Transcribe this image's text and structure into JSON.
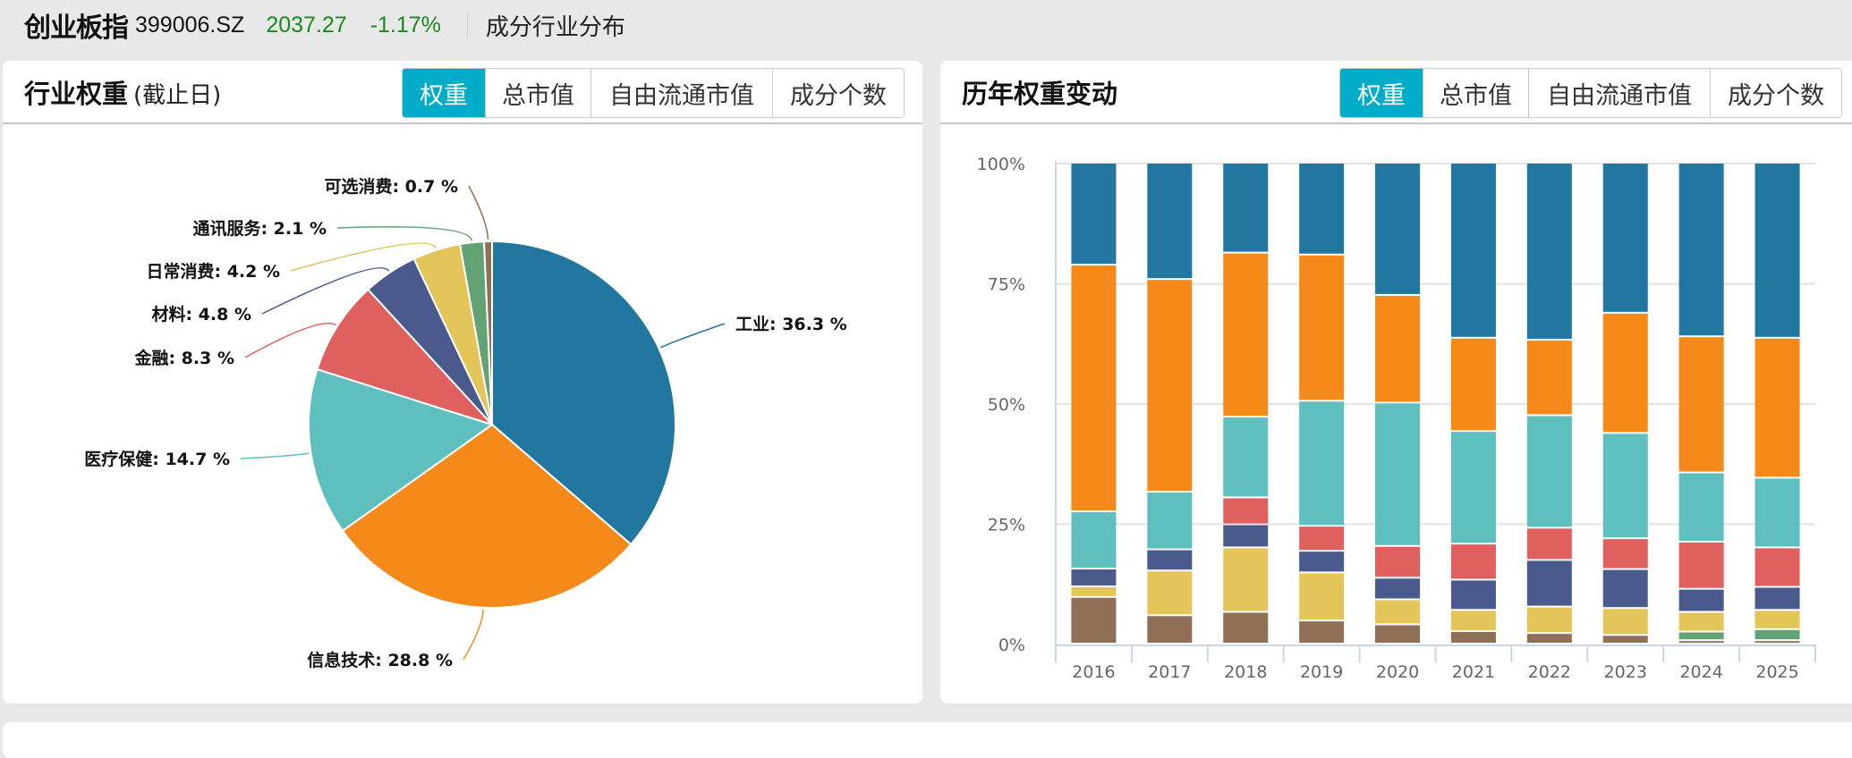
{
  "header": {
    "index_name": "创业板指",
    "index_code": "399006.SZ",
    "price": "2037.27",
    "change_pct": "-1.17%",
    "page_subtitle": "成分行业分布"
  },
  "left_panel": {
    "title": "行业权重",
    "title_sub": "(截止日)",
    "tabs": [
      {
        "label": "权重",
        "active": true
      },
      {
        "label": "总市值",
        "active": false
      },
      {
        "label": "自由流通市值",
        "active": false
      },
      {
        "label": "成分个数",
        "active": false
      }
    ]
  },
  "right_panel": {
    "title": "历年权重变动",
    "tabs": [
      {
        "label": "权重",
        "active": true
      },
      {
        "label": "总市值",
        "active": false
      },
      {
        "label": "自由流通市值",
        "active": false
      },
      {
        "label": "成分个数",
        "active": false
      }
    ]
  },
  "colors": {
    "工业": "#2277a1",
    "信息技术": "#f58a1a",
    "医疗保健": "#5fbebe",
    "金融": "#e05f5f",
    "材料": "#4b5a8c",
    "日常消费": "#e3c55a",
    "通讯服务": "#63a274",
    "可选消费": "#8f6f55",
    "accent_tab": "#00acc8",
    "price_green": "#1a8a1a"
  },
  "chart_data": [
    {
      "type": "pie",
      "title": "行业权重(截止日)",
      "categories": [
        "工业",
        "信息技术",
        "医疗保健",
        "金融",
        "材料",
        "日常消费",
        "通讯服务",
        "可选消费"
      ],
      "values": [
        36.3,
        28.8,
        14.7,
        8.3,
        4.8,
        4.2,
        2.1,
        0.7
      ],
      "labels": [
        "工业: 36.3 %",
        "信息技术: 28.8 %",
        "医疗保健: 14.7 %",
        "金融: 8.3 %",
        "材料: 4.8 %",
        "日常消费: 4.2 %",
        "通讯服务: 2.1 %",
        "可选消费: 0.7 %"
      ],
      "unit": "%"
    },
    {
      "type": "bar",
      "stacked": true,
      "percent": true,
      "title": "历年权重变动",
      "categories": [
        "2016",
        "2017",
        "2018",
        "2019",
        "2020",
        "2021",
        "2022",
        "2023",
        "2024",
        "2025"
      ],
      "yticks": [
        "0%",
        "25%",
        "50%",
        "75%",
        "100%"
      ],
      "ylim": [
        0,
        100
      ],
      "grid": true,
      "series": [
        {
          "name": "可选消费",
          "values": [
            9.7,
            5.9,
            6.6,
            4.8,
            4.0,
            2.6,
            2.2,
            1.8,
            0.7,
            0.7
          ]
        },
        {
          "name": "通讯服务",
          "values": [
            0,
            0,
            0,
            0,
            0,
            0,
            0,
            0,
            1.8,
            2.3
          ]
        },
        {
          "name": "日常消费",
          "values": [
            2.2,
            9.3,
            13.4,
            10.0,
            5.2,
            4.4,
            5.5,
            5.6,
            4.1,
            4.0
          ]
        },
        {
          "name": "材料",
          "values": [
            3.7,
            4.4,
            4.8,
            4.5,
            4.5,
            6.3,
            9.7,
            8.1,
            4.8,
            4.8
          ]
        },
        {
          "name": "金融",
          "values": [
            0,
            0,
            5.6,
            5.2,
            6.6,
            7.5,
            6.7,
            6.4,
            9.8,
            8.2
          ]
        },
        {
          "name": "医疗保健",
          "values": [
            11.9,
            12.0,
            16.8,
            26.0,
            29.8,
            23.4,
            23.4,
            21.9,
            14.4,
            14.5
          ]
        },
        {
          "name": "信息技术",
          "values": [
            51.3,
            44.2,
            34.1,
            30.4,
            22.4,
            19.4,
            15.7,
            25.0,
            28.3,
            29.1
          ]
        },
        {
          "name": "工业",
          "values": [
            21.2,
            24.2,
            18.7,
            19.1,
            27.5,
            36.4,
            36.8,
            31.2,
            36.1,
            36.4
          ]
        }
      ]
    }
  ]
}
